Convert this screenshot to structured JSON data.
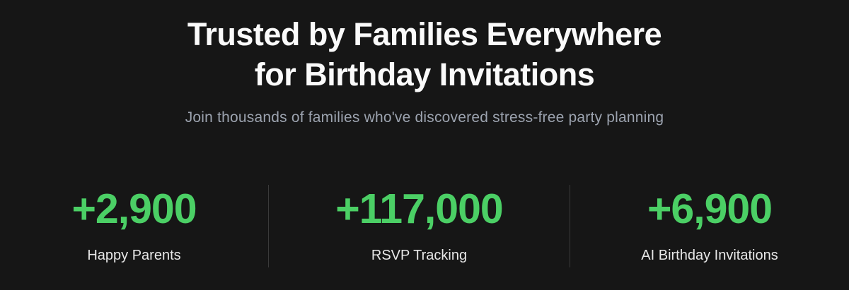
{
  "section": {
    "heading": {
      "line1": "Trusted by Families Everywhere",
      "line2": "for Birthday Invitations"
    },
    "subtitle": "Join thousands of families who've discovered stress-free party planning",
    "stats": [
      {
        "value": "+2,900",
        "label": "Happy Parents"
      },
      {
        "value": "+117,000",
        "label": "RSVP Tracking"
      },
      {
        "value": "+6,900",
        "label": "AI Birthday Invitations"
      }
    ],
    "colors": {
      "background": "#161616",
      "accent_green": "#4bcf65",
      "subtitle_gray": "#9ca3af",
      "divider_gray": "#3a3a3a"
    }
  }
}
